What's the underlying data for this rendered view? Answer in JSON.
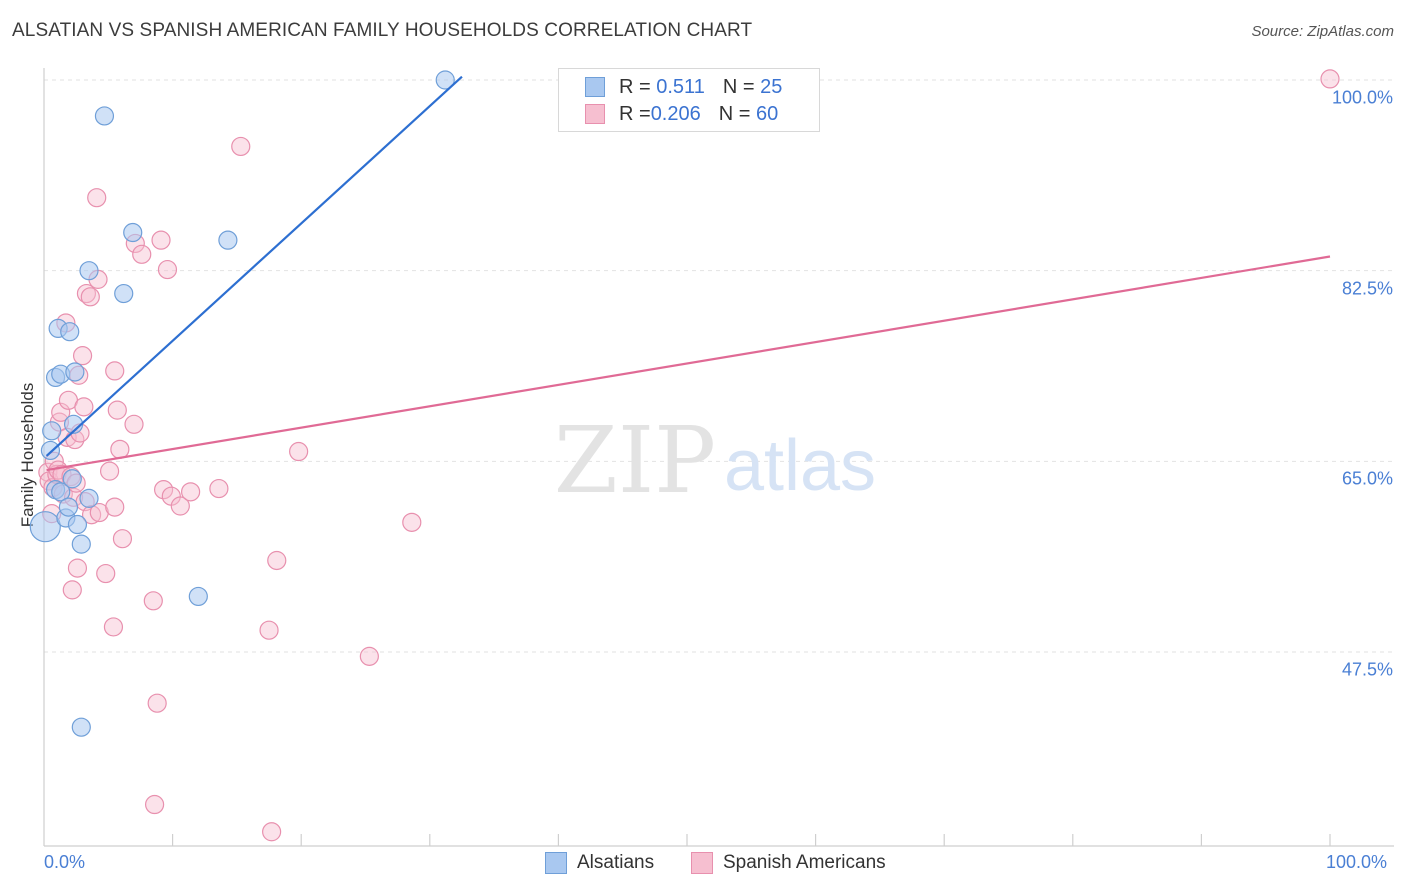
{
  "title": "ALSATIAN VS SPANISH AMERICAN FAMILY HOUSEHOLDS CORRELATION CHART",
  "source": "Source: ZipAtlas.com",
  "watermark": {
    "zip": "ZIP",
    "atlas": "atlas"
  },
  "legend": {
    "series1": {
      "r_label": "R = ",
      "r_value": "0.511",
      "n_label": "N = ",
      "n_value": "25"
    },
    "series2": {
      "r_label": "R = ",
      "r_value": "0.206",
      "n_label": "N = ",
      "n_value": "60"
    }
  },
  "colors": {
    "blue_fill": "#a9c8f0",
    "blue_stroke": "#6f9fd8",
    "blue_line": "#2d6fd1",
    "pink_fill": "#f6bfd0",
    "pink_stroke": "#e890ae",
    "pink_line": "#e06a95"
  },
  "chart_data": {
    "type": "scatter",
    "title": "ALSATIAN VS SPANISH AMERICAN FAMILY HOUSEHOLDS CORRELATION CHART",
    "xlabel": "",
    "ylabel": "Family Households",
    "xlim": [
      0,
      100
    ],
    "ylim": [
      31,
      102
    ],
    "x_tick_labels": [
      "0.0%",
      "100.0%"
    ],
    "y_ticks": [
      47.5,
      65.0,
      82.5,
      100.0
    ],
    "y_tick_labels": [
      "47.5%",
      "65.0%",
      "82.5%",
      "100.0%"
    ],
    "legend_labels": [
      "Alsatians",
      "Spanish Americans"
    ],
    "series": [
      {
        "name": "Alsatians",
        "r": 0.511,
        "n": 25,
        "trend": {
          "x": [
            0.2,
            32.5
          ],
          "y": [
            65.5,
            100.3
          ]
        },
        "points": [
          {
            "x": 0.1,
            "y": 59.0
          },
          {
            "x": 0.5,
            "y": 66.0
          },
          {
            "x": 0.6,
            "y": 67.8
          },
          {
            "x": 0.9,
            "y": 62.4
          },
          {
            "x": 0.9,
            "y": 72.7
          },
          {
            "x": 1.1,
            "y": 77.2
          },
          {
            "x": 1.3,
            "y": 62.2
          },
          {
            "x": 1.3,
            "y": 73.0
          },
          {
            "x": 1.7,
            "y": 59.8
          },
          {
            "x": 1.9,
            "y": 60.8
          },
          {
            "x": 2.0,
            "y": 76.9
          },
          {
            "x": 2.3,
            "y": 68.4
          },
          {
            "x": 2.4,
            "y": 73.2
          },
          {
            "x": 2.6,
            "y": 59.2
          },
          {
            "x": 2.9,
            "y": 57.4
          },
          {
            "x": 2.9,
            "y": 40.6
          },
          {
            "x": 3.5,
            "y": 61.6
          },
          {
            "x": 3.5,
            "y": 82.5
          },
          {
            "x": 4.7,
            "y": 96.7
          },
          {
            "x": 6.2,
            "y": 80.4
          },
          {
            "x": 6.9,
            "y": 86.0
          },
          {
            "x": 12.0,
            "y": 52.6
          },
          {
            "x": 14.3,
            "y": 85.3
          },
          {
            "x": 31.2,
            "y": 100.0
          },
          {
            "x": 2.2,
            "y": 63.4
          }
        ]
      },
      {
        "name": "Spanish Americans",
        "r": 0.206,
        "n": 60,
        "trend": {
          "x": [
            0.2,
            100
          ],
          "y": [
            64.2,
            83.8
          ]
        },
        "points": [
          {
            "x": 0.3,
            "y": 64.0
          },
          {
            "x": 0.4,
            "y": 63.2
          },
          {
            "x": 0.6,
            "y": 60.2
          },
          {
            "x": 0.7,
            "y": 62.6
          },
          {
            "x": 0.8,
            "y": 65.0
          },
          {
            "x": 1.0,
            "y": 63.8
          },
          {
            "x": 1.1,
            "y": 64.2
          },
          {
            "x": 1.2,
            "y": 68.6
          },
          {
            "x": 1.3,
            "y": 69.5
          },
          {
            "x": 1.4,
            "y": 63.8
          },
          {
            "x": 1.5,
            "y": 62.0
          },
          {
            "x": 1.7,
            "y": 77.7
          },
          {
            "x": 1.8,
            "y": 67.2
          },
          {
            "x": 1.9,
            "y": 70.6
          },
          {
            "x": 2.1,
            "y": 63.6
          },
          {
            "x": 2.2,
            "y": 53.2
          },
          {
            "x": 2.3,
            "y": 61.7
          },
          {
            "x": 2.4,
            "y": 67.0
          },
          {
            "x": 2.5,
            "y": 63.0
          },
          {
            "x": 2.6,
            "y": 55.2
          },
          {
            "x": 2.8,
            "y": 67.6
          },
          {
            "x": 3.0,
            "y": 74.7
          },
          {
            "x": 3.1,
            "y": 70.0
          },
          {
            "x": 3.2,
            "y": 61.3
          },
          {
            "x": 3.3,
            "y": 80.4
          },
          {
            "x": 3.6,
            "y": 80.1
          },
          {
            "x": 3.7,
            "y": 60.1
          },
          {
            "x": 4.1,
            "y": 89.2
          },
          {
            "x": 4.2,
            "y": 81.7
          },
          {
            "x": 4.3,
            "y": 60.3
          },
          {
            "x": 4.8,
            "y": 54.7
          },
          {
            "x": 5.1,
            "y": 64.1
          },
          {
            "x": 5.4,
            "y": 49.8
          },
          {
            "x": 5.5,
            "y": 60.8
          },
          {
            "x": 5.5,
            "y": 73.3
          },
          {
            "x": 5.7,
            "y": 69.7
          },
          {
            "x": 5.9,
            "y": 66.1
          },
          {
            "x": 6.1,
            "y": 57.9
          },
          {
            "x": 7.0,
            "y": 68.4
          },
          {
            "x": 7.1,
            "y": 85.0
          },
          {
            "x": 7.6,
            "y": 84.0
          },
          {
            "x": 8.5,
            "y": 52.2
          },
          {
            "x": 8.8,
            "y": 42.8
          },
          {
            "x": 8.6,
            "y": 33.5
          },
          {
            "x": 9.1,
            "y": 85.3
          },
          {
            "x": 9.3,
            "y": 62.4
          },
          {
            "x": 9.6,
            "y": 82.6
          },
          {
            "x": 9.9,
            "y": 61.8
          },
          {
            "x": 10.6,
            "y": 60.9
          },
          {
            "x": 11.4,
            "y": 62.2
          },
          {
            "x": 13.6,
            "y": 62.5
          },
          {
            "x": 15.3,
            "y": 93.9
          },
          {
            "x": 17.5,
            "y": 49.5
          },
          {
            "x": 17.7,
            "y": 31.0
          },
          {
            "x": 18.1,
            "y": 55.9
          },
          {
            "x": 19.8,
            "y": 65.9
          },
          {
            "x": 25.3,
            "y": 47.1
          },
          {
            "x": 28.6,
            "y": 59.4
          },
          {
            "x": 100.0,
            "y": 100.1
          },
          {
            "x": 2.7,
            "y": 72.9
          }
        ]
      }
    ]
  }
}
